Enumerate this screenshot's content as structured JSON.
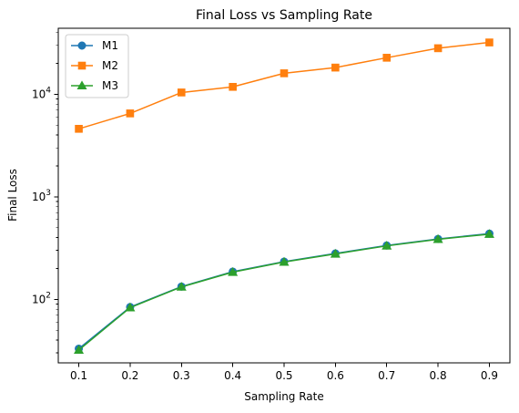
{
  "chart_data": {
    "type": "line",
    "title": "Final Loss vs Sampling Rate",
    "xlabel": "Sampling Rate",
    "ylabel": "Final Loss",
    "x": [
      0.1,
      0.2,
      0.3,
      0.4,
      0.5,
      0.6,
      0.7,
      0.8,
      0.9
    ],
    "x_tick_labels": [
      "0.1",
      "0.2",
      "0.3",
      "0.4",
      "0.5",
      "0.6",
      "0.7",
      "0.8",
      "0.9"
    ],
    "xlim": [
      0.06,
      0.94
    ],
    "yscale": "log",
    "ylim": [
      24,
      44000
    ],
    "y_tick_labels": [
      {
        "value": 100,
        "base": "10",
        "exp": "2"
      },
      {
        "value": 1000,
        "base": "10",
        "exp": "3"
      },
      {
        "value": 10000,
        "base": "10",
        "exp": "4"
      }
    ],
    "grid": false,
    "legend_position": "top-left",
    "series": [
      {
        "name": "M1",
        "color": "#1f77b4",
        "marker": "circle",
        "values": [
          33,
          84,
          133,
          186,
          233,
          280,
          335,
          388,
          437
        ]
      },
      {
        "name": "M2",
        "color": "#ff7f0e",
        "marker": "square",
        "values": [
          4600,
          6500,
          10400,
          11800,
          16000,
          18200,
          22700,
          28100,
          32000
        ]
      },
      {
        "name": "M3",
        "color": "#2ca02c",
        "marker": "triangle-up",
        "values": [
          32,
          83,
          132,
          184,
          231,
          277,
          332,
          385,
          432
        ]
      }
    ]
  }
}
